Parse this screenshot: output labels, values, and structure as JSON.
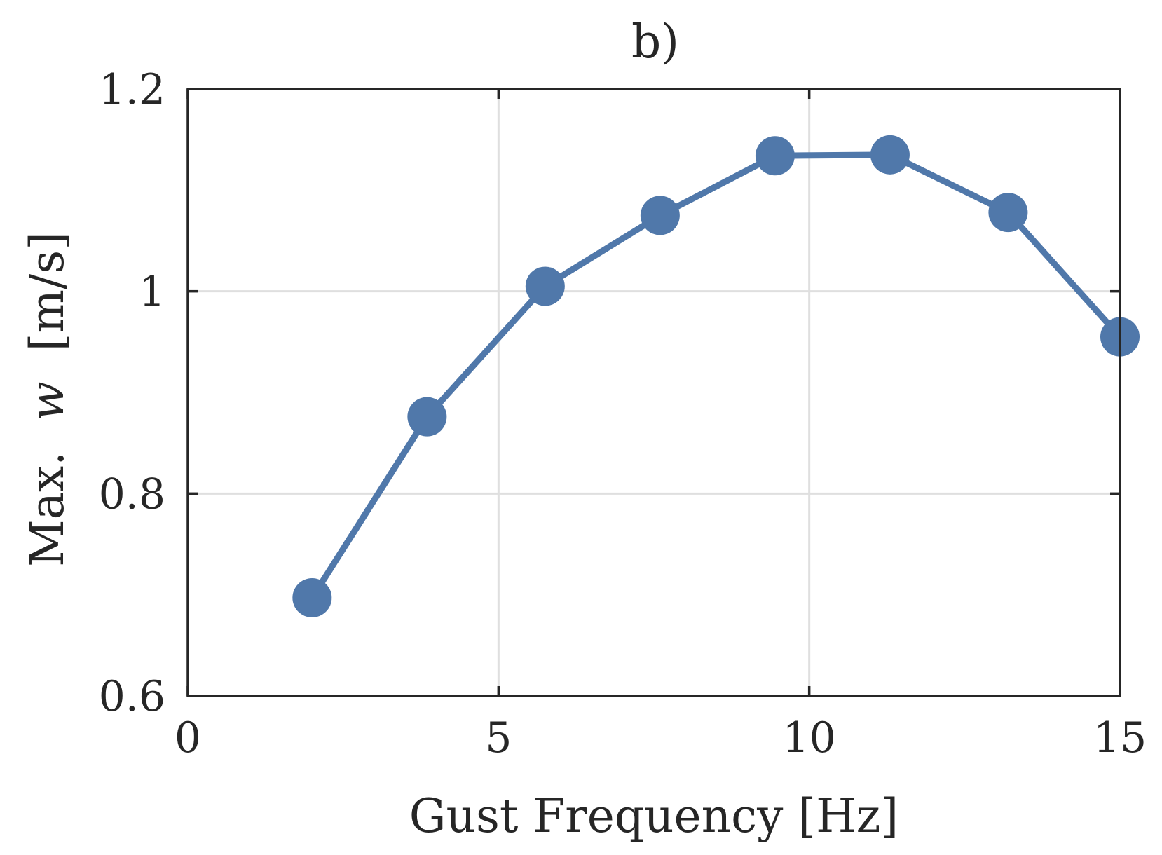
{
  "chart_data": {
    "type": "line",
    "title": "b)",
    "xlabel": "Gust Frequency [Hz]",
    "ylabel_prefix": "Max.",
    "ylabel_symbol": "w",
    "ylabel_unit": "[m/s]",
    "xlim": [
      0,
      15
    ],
    "ylim": [
      0.6,
      1.2
    ],
    "xticks": [
      0,
      5,
      10,
      15
    ],
    "xtick_labels": [
      "0",
      "5",
      "10",
      "15"
    ],
    "yticks": [
      0.6,
      0.8,
      1.0,
      1.2
    ],
    "ytick_labels": [
      "0.6",
      "0.8",
      "1",
      "1.2"
    ],
    "grid": true,
    "series": [
      {
        "color": "#5078aa",
        "marker": "circle",
        "x": [
          2.0,
          3.85,
          5.75,
          7.6,
          9.45,
          11.3,
          13.2,
          15.0
        ],
        "y": [
          0.697,
          0.876,
          1.005,
          1.075,
          1.134,
          1.135,
          1.078,
          0.955
        ]
      }
    ]
  }
}
